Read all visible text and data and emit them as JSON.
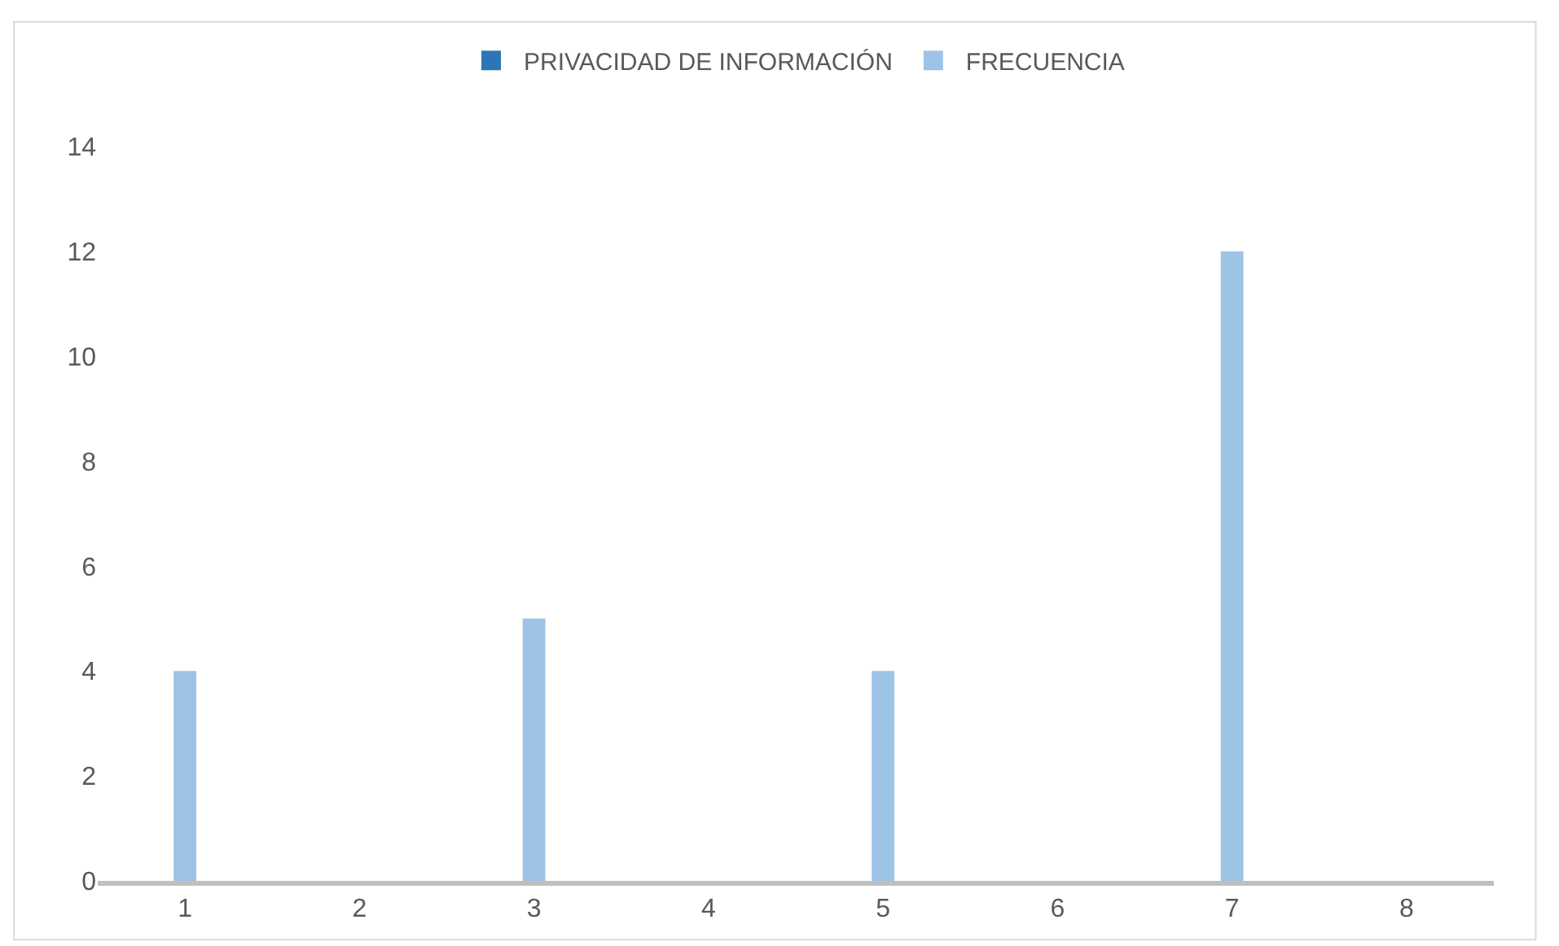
{
  "chart_data": {
    "type": "bar",
    "categories": [
      "1",
      "2",
      "3",
      "4",
      "5",
      "6",
      "7",
      "8"
    ],
    "series": [
      {
        "name": "PRIVACIDAD DE INFORMACIÓN",
        "color": "#2e75b6",
        "values": [
          null,
          null,
          null,
          null,
          null,
          null,
          null,
          null
        ]
      },
      {
        "name": "FRECUENCIA",
        "color": "#9dc3e6",
        "values": [
          4,
          null,
          5,
          null,
          4,
          null,
          12,
          null
        ]
      }
    ],
    "ylim": [
      0,
      14
    ],
    "yticks": [
      0,
      2,
      4,
      6,
      8,
      10,
      12,
      14
    ],
    "grid": false,
    "legend": "top"
  }
}
